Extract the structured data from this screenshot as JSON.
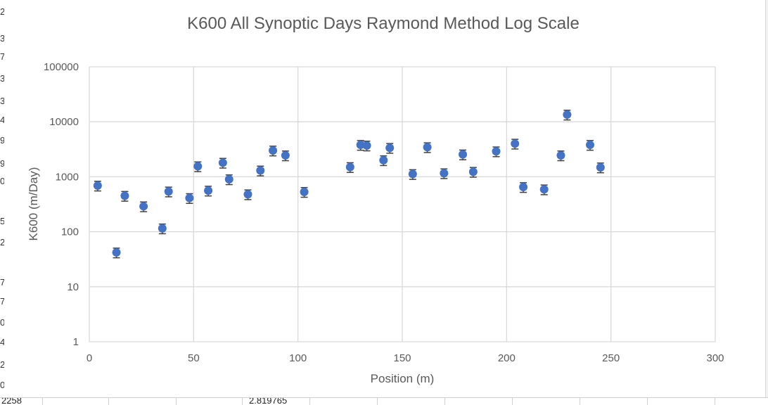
{
  "chart_data": {
    "type": "scatter",
    "title": "K600 All Synoptic Days Raymond Method Log Scale",
    "xlabel": "Position (m)",
    "ylabel": "K600 (m/Day)",
    "xlim": [
      0,
      300
    ],
    "ylim": [
      1,
      100000
    ],
    "yscale": "log",
    "grid": true,
    "marker_color": "#4472C4",
    "errorbar_color": "#404040",
    "xticks": [
      "0",
      "50",
      "100",
      "150",
      "200",
      "250",
      "300"
    ],
    "yticks": [
      "1",
      "10",
      "100",
      "1000",
      "10000",
      "100000"
    ],
    "series": [
      {
        "x": [
          4,
          13,
          17,
          26,
          35,
          38,
          48,
          52,
          57,
          64,
          67,
          76,
          82,
          88,
          94,
          103,
          125,
          130,
          133,
          141,
          144,
          155,
          162,
          170,
          179,
          184,
          195,
          204,
          208,
          218,
          226,
          229,
          240,
          245
        ],
        "y": [
          690,
          42,
          450,
          290,
          115,
          540,
          410,
          1550,
          560,
          1800,
          900,
          480,
          1300,
          3000,
          2450,
          530,
          1500,
          3800,
          3700,
          2000,
          3350,
          1120,
          3450,
          1160,
          2550,
          1230,
          2900,
          4000,
          650,
          590,
          2450,
          13500,
          3800,
          1480
        ],
        "err": [
          0.2,
          0.2,
          0.2,
          0.2,
          0.2,
          0.2,
          0.2,
          0.2,
          0.2,
          0.2,
          0.2,
          0.2,
          0.2,
          0.2,
          0.2,
          0.2,
          0.2,
          0.2,
          0.2,
          0.2,
          0.2,
          0.2,
          0.2,
          0.2,
          0.2,
          0.2,
          0.2,
          0.2,
          0.2,
          0.2,
          0.2,
          0.2,
          0.2,
          0.2
        ]
      }
    ]
  },
  "sheet": {
    "left_digits": [
      "2",
      "3",
      "7",
      "3",
      "3",
      "4",
      "9",
      "9",
      "0",
      "5",
      "2",
      "7",
      "7",
      "0",
      "4",
      "2",
      "0"
    ],
    "bottom_left": "2258",
    "bottom_mid": "2.819765"
  }
}
